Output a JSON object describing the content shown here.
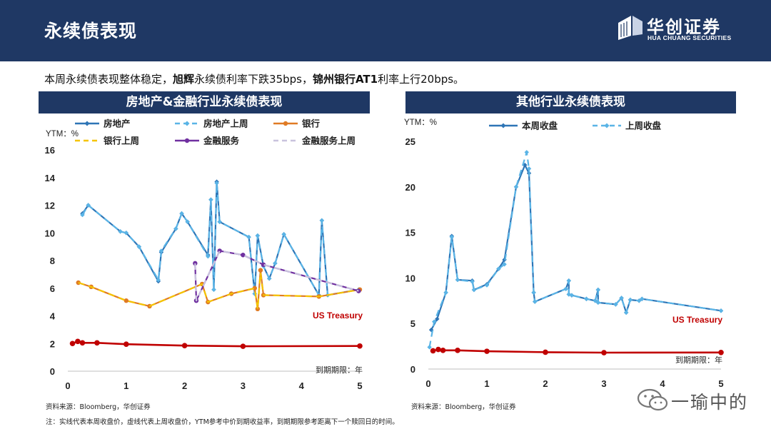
{
  "header": {
    "title": "永续债表现",
    "brand_cn": "华创证券",
    "brand_en": "HUA CHUANG SECURITIES"
  },
  "summary": {
    "part1": "本周永续债表现整体稳定，",
    "bold1": "旭辉",
    "part2": "永续债利率下跌35bps，",
    "bold2": "锦州银行AT1",
    "part3": "利率上行20bps。"
  },
  "chart_data": [
    {
      "type": "line",
      "title": "房地产&金融行业永续债表现",
      "ylabel": "YTM：%",
      "xlabel": "到期期限：年",
      "xlim": [
        0,
        5
      ],
      "ylim": [
        0,
        16
      ],
      "x_ticks": [
        "0",
        "1",
        "2",
        "3",
        "4",
        "5"
      ],
      "y_ticks": [
        "0",
        "2",
        "4",
        "6",
        "8",
        "10",
        "12",
        "14",
        "16"
      ],
      "annotation": "US Treasury",
      "legend": [
        "房地产",
        "房地产上周",
        "银行",
        "银行上周",
        "金融服务",
        "金融服务上周"
      ],
      "series": [
        {
          "name": "房地产",
          "color": "#2e75b6",
          "style": "solid",
          "marker": "diamond",
          "points": [
            [
              0.25,
              11.4
            ],
            [
              0.35,
              12.0
            ],
            [
              0.9,
              10.1
            ],
            [
              1.0,
              10.0
            ],
            [
              1.22,
              9.0
            ],
            [
              1.55,
              6.5
            ],
            [
              1.6,
              8.6
            ],
            [
              1.85,
              10.3
            ],
            [
              1.95,
              11.4
            ],
            [
              2.05,
              10.8
            ],
            [
              2.4,
              8.4
            ],
            [
              2.45,
              12.4
            ],
            [
              2.5,
              5.9
            ],
            [
              2.55,
              13.7
            ],
            [
              2.6,
              10.8
            ],
            [
              3.1,
              9.7
            ],
            [
              3.2,
              5.6
            ],
            [
              3.25,
              9.8
            ],
            [
              3.35,
              7.6
            ],
            [
              3.45,
              6.7
            ],
            [
              3.55,
              7.8
            ],
            [
              3.7,
              9.9
            ],
            [
              4.3,
              5.5
            ],
            [
              4.35,
              10.9
            ],
            [
              4.45,
              5.5
            ],
            [
              4.98,
              5.9
            ]
          ]
        },
        {
          "name": "房地产上周",
          "color": "#5ab4e6",
          "style": "dash",
          "marker": "diamond",
          "points": [
            [
              0.25,
              11.3
            ],
            [
              0.35,
              12.0
            ],
            [
              0.9,
              10.1
            ],
            [
              1.0,
              10.0
            ],
            [
              1.22,
              9.0
            ],
            [
              1.55,
              6.6
            ],
            [
              1.6,
              8.7
            ],
            [
              1.85,
              10.3
            ],
            [
              1.95,
              11.4
            ],
            [
              2.05,
              10.8
            ],
            [
              2.4,
              8.3
            ],
            [
              2.45,
              12.4
            ],
            [
              2.5,
              5.9
            ],
            [
              2.55,
              13.6
            ],
            [
              2.6,
              10.8
            ],
            [
              3.1,
              9.7
            ],
            [
              3.2,
              5.6
            ],
            [
              3.25,
              9.8
            ],
            [
              3.35,
              7.6
            ],
            [
              3.45,
              6.7
            ],
            [
              3.55,
              7.8
            ],
            [
              3.7,
              9.9
            ],
            [
              4.3,
              5.5
            ],
            [
              4.35,
              10.9
            ],
            [
              4.45,
              5.5
            ],
            [
              4.98,
              5.9
            ]
          ]
        },
        {
          "name": "银行",
          "color": "#e07b24",
          "style": "solid",
          "marker": "circle",
          "points": [
            [
              0.18,
              6.4
            ],
            [
              0.4,
              6.1
            ],
            [
              1.0,
              5.1
            ],
            [
              1.4,
              4.7
            ],
            [
              2.3,
              6.3
            ],
            [
              2.4,
              5.0
            ],
            [
              2.8,
              5.6
            ],
            [
              3.2,
              6.0
            ],
            [
              3.25,
              4.5
            ],
            [
              3.3,
              7.3
            ],
            [
              3.35,
              5.5
            ],
            [
              4.3,
              5.4
            ],
            [
              5.0,
              5.9
            ]
          ]
        },
        {
          "name": "银行上周",
          "color": "#f5c400",
          "style": "dash",
          "marker": "none",
          "points": [
            [
              0.18,
              6.4
            ],
            [
              0.4,
              6.1
            ],
            [
              1.0,
              5.1
            ],
            [
              1.4,
              4.7
            ],
            [
              2.3,
              6.3
            ],
            [
              2.4,
              5.0
            ],
            [
              2.8,
              5.6
            ],
            [
              3.2,
              6.0
            ],
            [
              3.25,
              4.5
            ],
            [
              3.3,
              7.1
            ],
            [
              3.35,
              5.5
            ],
            [
              4.3,
              5.4
            ],
            [
              5.0,
              5.9
            ]
          ]
        },
        {
          "name": "金融服务",
          "color": "#7030a0",
          "style": "solid",
          "marker": "circle",
          "points": [
            [
              2.18,
              7.8
            ],
            [
              2.2,
              5.1
            ],
            [
              2.6,
              8.7
            ],
            [
              3.0,
              8.4
            ],
            [
              3.35,
              7.7
            ],
            [
              4.98,
              5.8
            ]
          ]
        },
        {
          "name": "金融服务上周",
          "color": "#c9c3de",
          "style": "dash",
          "marker": "none",
          "points": [
            [
              2.18,
              7.8
            ],
            [
              2.2,
              5.1
            ],
            [
              2.6,
              8.7
            ],
            [
              3.0,
              8.4
            ],
            [
              3.35,
              7.7
            ],
            [
              4.98,
              5.8
            ]
          ]
        },
        {
          "name": "US Treasury",
          "color": "#c00000",
          "style": "solid",
          "marker": "circle",
          "points": [
            [
              0.08,
              2.0
            ],
            [
              0.17,
              2.15
            ],
            [
              0.25,
              2.05
            ],
            [
              0.5,
              2.05
            ],
            [
              1.0,
              1.95
            ],
            [
              2.0,
              1.85
            ],
            [
              3.0,
              1.8
            ],
            [
              5.0,
              1.82
            ]
          ]
        }
      ]
    },
    {
      "type": "line",
      "title": "其他行业永续债表现",
      "ylabel": "YTM：%",
      "xlabel": "到期期限：年",
      "xlim": [
        0,
        5
      ],
      "ylim": [
        0,
        25
      ],
      "x_ticks": [
        "0",
        "1",
        "2",
        "3",
        "4",
        "5"
      ],
      "y_ticks": [
        "0",
        "5",
        "10",
        "15",
        "20",
        "25"
      ],
      "annotation": "US Treasury",
      "legend": [
        "本周收盘",
        "上周收盘"
      ],
      "series": [
        {
          "name": "本周收盘",
          "color": "#2e75b6",
          "style": "solid",
          "marker": "diamond",
          "points": [
            [
              0.05,
              4.3
            ],
            [
              0.15,
              5.5
            ],
            [
              0.3,
              8.4
            ],
            [
              0.4,
              14.6
            ],
            [
              0.5,
              9.8
            ],
            [
              0.75,
              9.7
            ],
            [
              0.78,
              8.7
            ],
            [
              1.0,
              9.3
            ],
            [
              1.2,
              11.0
            ],
            [
              1.3,
              12.0
            ],
            [
              1.5,
              20.0
            ],
            [
              1.65,
              22.4
            ],
            [
              1.72,
              21.5
            ],
            [
              1.8,
              8.4
            ],
            [
              1.82,
              7.4
            ],
            [
              2.35,
              8.8
            ],
            [
              2.4,
              9.7
            ],
            [
              2.4,
              8.2
            ],
            [
              2.45,
              8.1
            ],
            [
              2.7,
              7.7
            ],
            [
              2.85,
              7.5
            ],
            [
              2.9,
              8.7
            ],
            [
              2.9,
              7.3
            ],
            [
              3.2,
              7.1
            ],
            [
              3.3,
              7.8
            ],
            [
              3.38,
              6.2
            ],
            [
              3.45,
              7.6
            ],
            [
              3.6,
              7.5
            ],
            [
              3.65,
              7.7
            ],
            [
              5.0,
              6.4
            ]
          ]
        },
        {
          "name": "上周收盘",
          "color": "#5ab4e6",
          "style": "dash",
          "marker": "diamond",
          "points": [
            [
              0.02,
              2.4
            ],
            [
              0.1,
              5.2
            ],
            [
              0.3,
              8.4
            ],
            [
              0.4,
              14.5
            ],
            [
              0.5,
              9.8
            ],
            [
              0.75,
              9.6
            ],
            [
              0.78,
              8.7
            ],
            [
              1.0,
              9.2
            ],
            [
              1.2,
              11.0
            ],
            [
              1.3,
              11.5
            ],
            [
              1.5,
              20.0
            ],
            [
              1.68,
              23.8
            ],
            [
              1.72,
              22.0
            ],
            [
              1.8,
              8.4
            ],
            [
              1.82,
              7.4
            ],
            [
              2.35,
              8.8
            ],
            [
              2.4,
              9.7
            ],
            [
              2.4,
              8.2
            ],
            [
              2.45,
              8.1
            ],
            [
              2.7,
              7.7
            ],
            [
              2.85,
              7.5
            ],
            [
              2.9,
              8.7
            ],
            [
              2.9,
              7.3
            ],
            [
              3.2,
              7.1
            ],
            [
              3.3,
              7.8
            ],
            [
              3.38,
              6.2
            ],
            [
              3.45,
              7.6
            ],
            [
              3.6,
              7.5
            ],
            [
              3.65,
              7.7
            ],
            [
              5.0,
              6.4
            ]
          ]
        },
        {
          "name": "US Treasury",
          "color": "#c00000",
          "style": "solid",
          "marker": "circle",
          "points": [
            [
              0.08,
              2.0
            ],
            [
              0.17,
              2.15
            ],
            [
              0.25,
              2.05
            ],
            [
              0.5,
              2.05
            ],
            [
              1.0,
              1.95
            ],
            [
              2.0,
              1.85
            ],
            [
              3.0,
              1.8
            ],
            [
              5.0,
              1.82
            ]
          ]
        }
      ]
    }
  ],
  "notes": {
    "source_left": "资料来源：Bloomberg，华创证券",
    "source_right": "资料来源：Bloomberg，华创证券",
    "footnote": "注：实线代表本周收盘价，虚线代表上周收盘价，YTM参考中价到期收益率，到期期限参考距离下一个赎回日的时间。"
  },
  "watermark": {
    "text": "一瑜中的"
  }
}
